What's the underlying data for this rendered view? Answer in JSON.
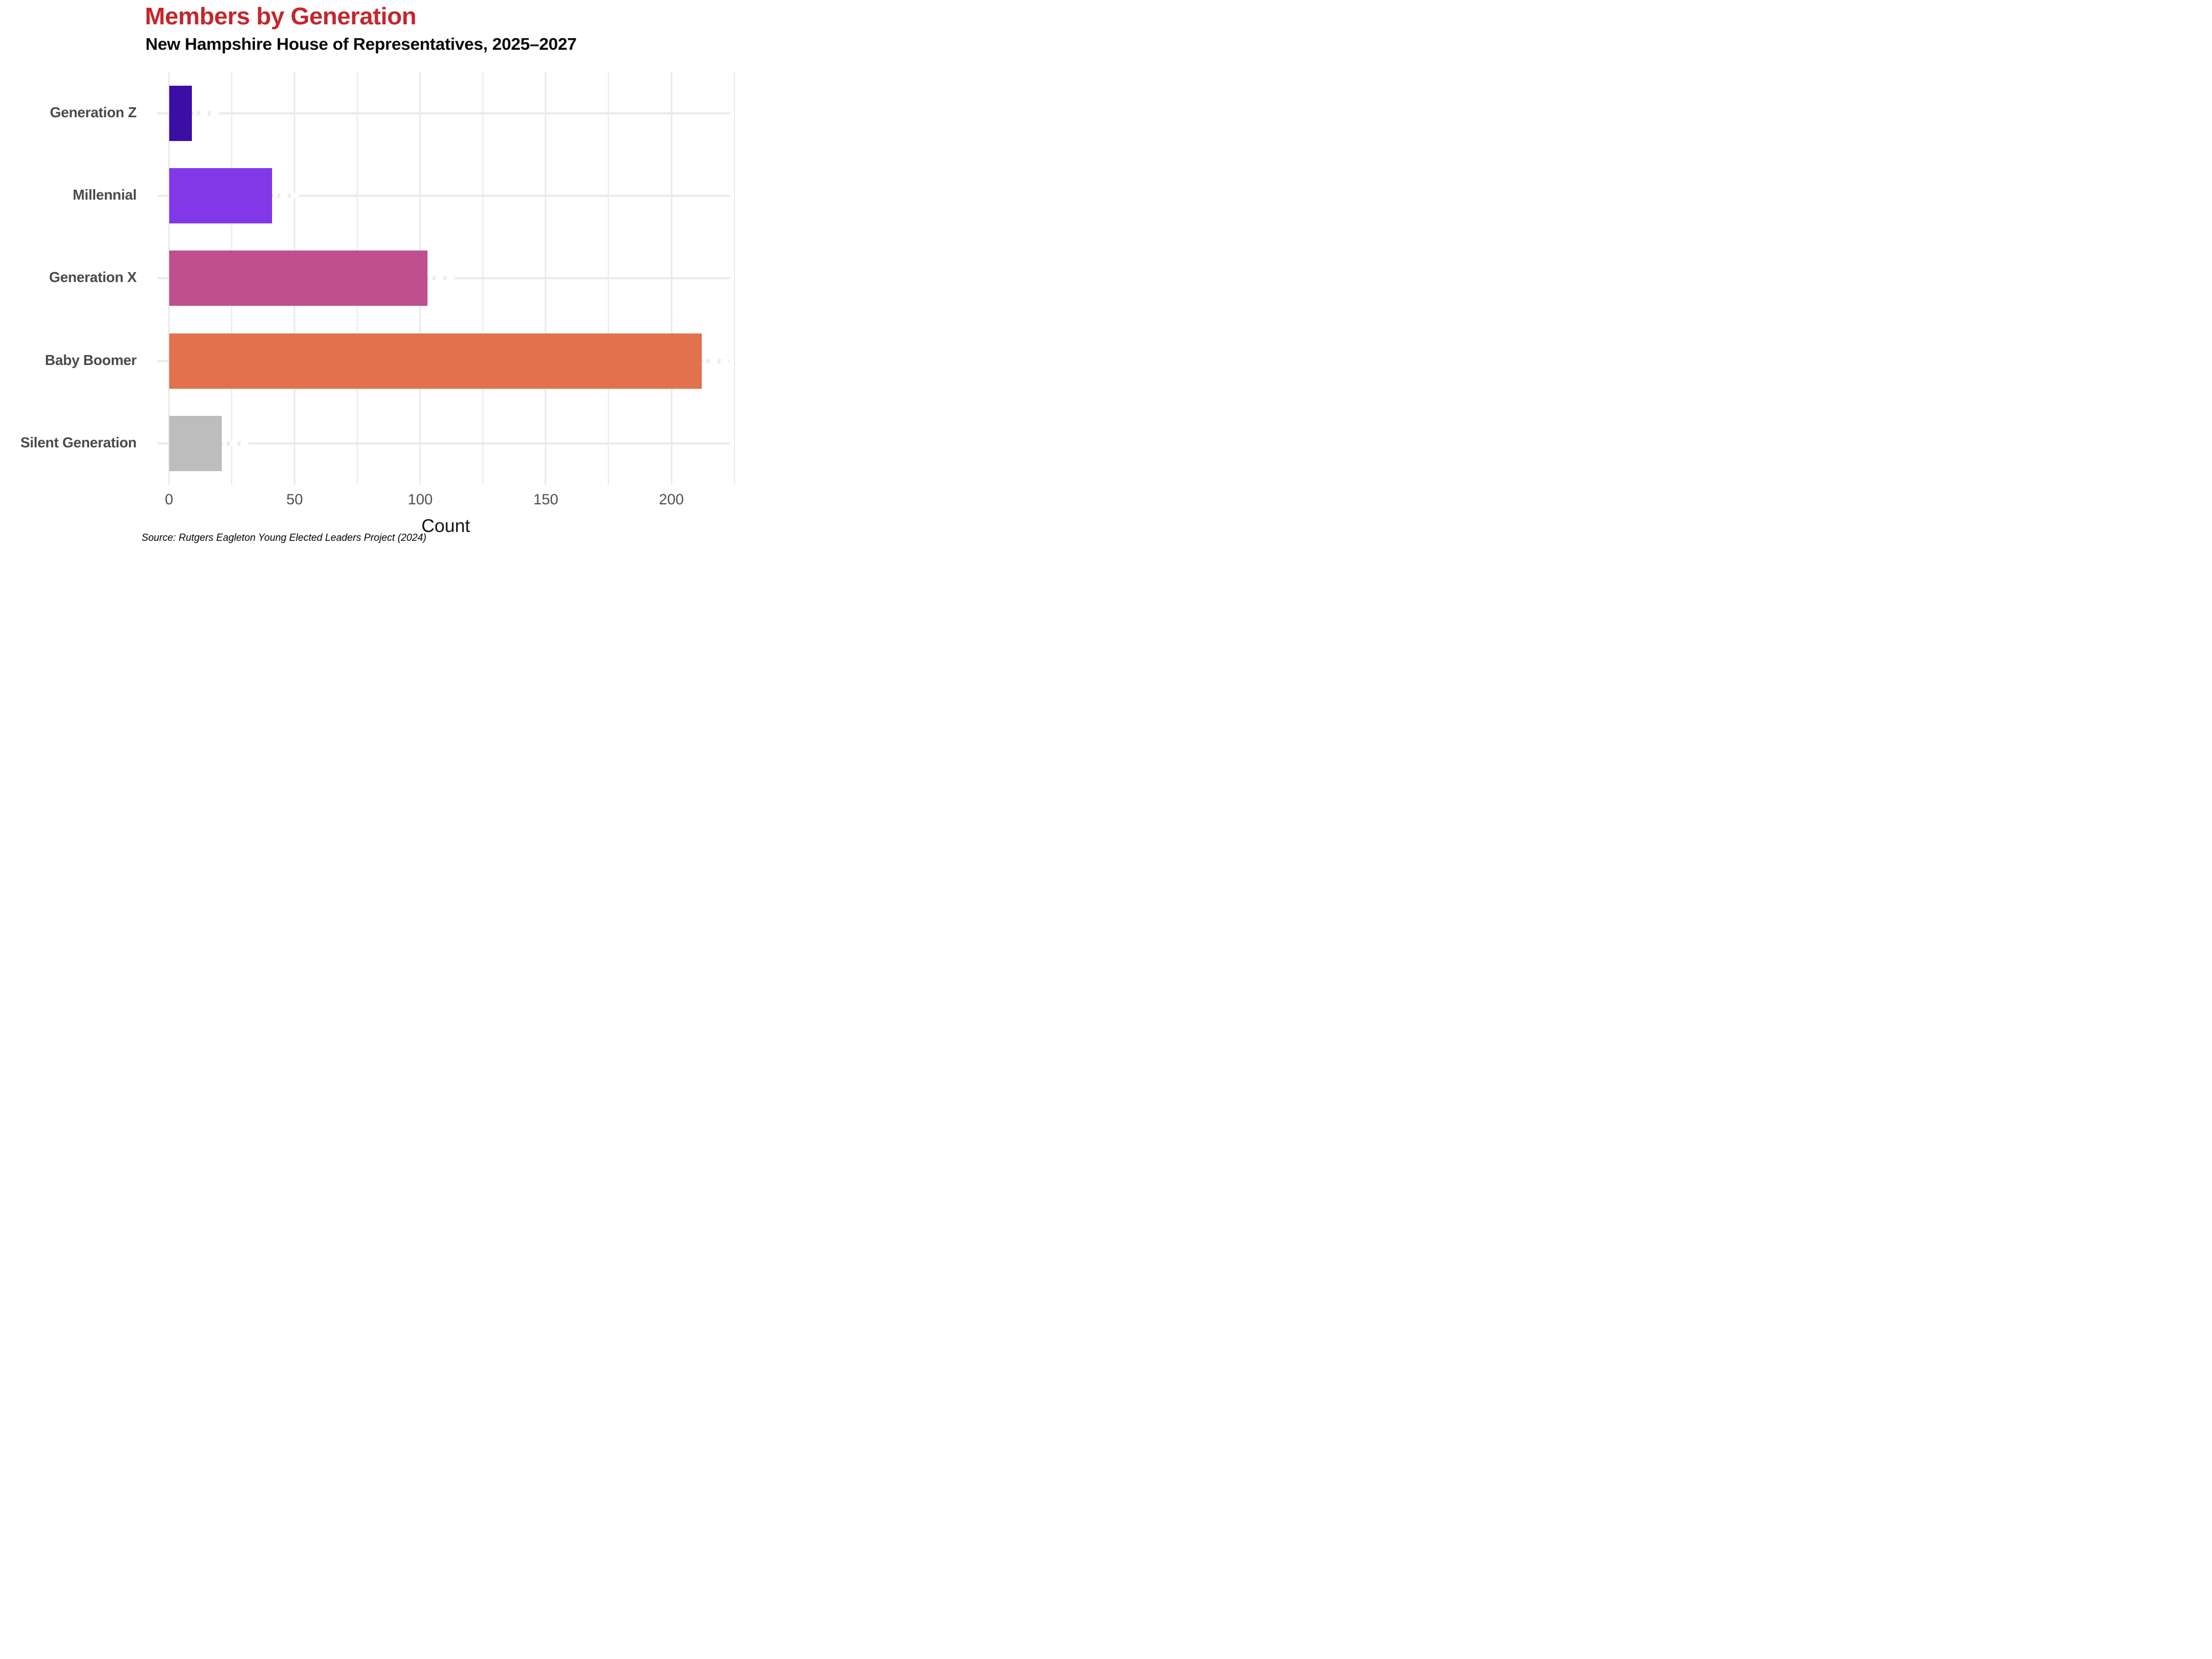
{
  "header": {
    "title": "Members by Generation",
    "subtitle": "New Hampshire House of Representatives, 2025–2027",
    "title_color": "#C4262B"
  },
  "chart_data": {
    "type": "bar",
    "orientation": "horizontal",
    "title": "Members by Generation",
    "subtitle": "New Hampshire House of Representatives, 2025–2027",
    "xlabel": "Count",
    "categories": [
      "Generation Z",
      "Millennial",
      "Generation X",
      "Baby Boomer",
      "Silent Generation"
    ],
    "values": [
      9,
      41,
      103,
      212,
      21
    ],
    "bar_colors": [
      "#3B0FA6",
      "#8238E8",
      "#BF4F8F",
      "#E2714E",
      "#BDBDBD"
    ],
    "xlim": [
      0,
      225
    ],
    "x_major_ticks": [
      0,
      50,
      100,
      150,
      200
    ],
    "x_minor_step": 25,
    "grid": "on",
    "gridline_color": "#EBEBEB",
    "legend": "none"
  },
  "footer": {
    "source": "Source: Rutgers Eagleton Young Elected Leaders Project (2024)"
  }
}
